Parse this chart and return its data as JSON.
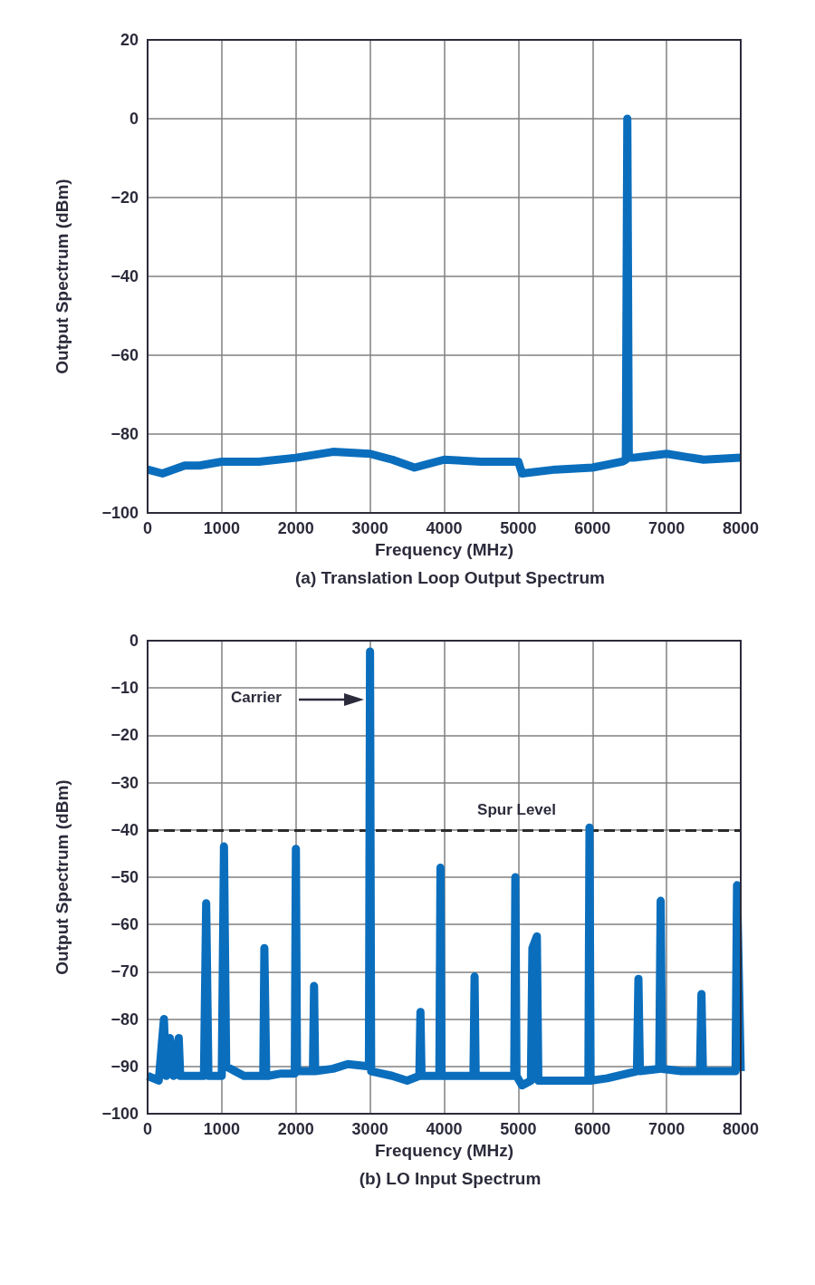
{
  "chart_data": [
    {
      "type": "line",
      "title": "(a) Translation Loop Output Spectrum",
      "xlabel": "Frequency (MHz)",
      "ylabel": "Output Spectrum (dBm)",
      "series": [
        {
          "color": "#0a6ebd",
          "x": [
            0,
            200,
            500,
            700,
            1000,
            1500,
            2000,
            2500,
            3000,
            3300,
            3600,
            4000,
            4500,
            5000,
            5050,
            5500,
            6000,
            6400,
            6450,
            6470,
            6490,
            6550,
            7000,
            7500,
            8000
          ],
          "values": [
            -89,
            -90,
            -88,
            -88,
            -87,
            -87,
            -86,
            -84.5,
            -85,
            -86.5,
            -88.5,
            -86.5,
            -87,
            -87,
            -90,
            -89,
            -88.5,
            -87,
            -86.5,
            0,
            -86,
            -86,
            -85,
            -86.5,
            -86
          ]
        }
      ],
      "xlim": [
        0,
        8000
      ],
      "xticks": [
        0,
        1000,
        2000,
        3000,
        4000,
        5000,
        6000,
        7000,
        8000
      ],
      "ylim": [
        -100,
        20
      ],
      "yticks": [
        -100,
        -80,
        -60,
        -40,
        -20,
        0,
        20
      ],
      "grid": true,
      "marker": "none",
      "line_style": "solid"
    },
    {
      "type": "line",
      "title": "(b) LO Input Spectrum",
      "xlabel": "Frequency (MHz)",
      "ylabel": "Output Spectrum (dBm)",
      "series": [
        {
          "color": "#0a6ebd",
          "x": [
            0,
            150,
            220,
            250,
            300,
            350,
            420,
            440,
            470,
            600,
            760,
            790,
            820,
            1000,
            1030,
            1060,
            1300,
            1560,
            1575,
            1600,
            1625,
            1800,
            1985,
            2000,
            2015,
            2230,
            2245,
            2260,
            2500,
            2700,
            2985,
            3000,
            3015,
            3300,
            3500,
            3665,
            3680,
            3695,
            3935,
            3950,
            3965,
            4200,
            4395,
            4410,
            4425,
            4700,
            4945,
            4960,
            4975,
            5050,
            5170,
            5190,
            5250,
            5270,
            5500,
            5945,
            5960,
            5975,
            6200,
            6600,
            6620,
            6640,
            6900,
            6920,
            6940,
            7200,
            7450,
            7470,
            7490,
            7700,
            7930,
            7950,
            8000
          ],
          "values": [
            -92,
            -93,
            -80,
            -92,
            -84,
            -92,
            -84,
            -92,
            -92,
            -92,
            -92,
            -55.5,
            -92,
            -92,
            -43.5,
            -90,
            -92,
            -92,
            -65,
            -92,
            -92,
            -91.5,
            -91.5,
            -44,
            -91,
            -91,
            -73,
            -91,
            -90.5,
            -89.5,
            -90,
            -2.3,
            -91,
            -92,
            -93,
            -92,
            -78.5,
            -92,
            -92,
            -48,
            -92,
            -92,
            -92,
            -71,
            -92,
            -92,
            -92,
            -50,
            -92,
            -94,
            -93,
            -65,
            -62.5,
            -93,
            -93,
            -93,
            -39.5,
            -93,
            -92.5,
            -91,
            -71.5,
            -91,
            -90.5,
            -55,
            -90.5,
            -91,
            -91,
            -74.7,
            -91,
            -91,
            -91,
            -51.7,
            -91
          ]
        }
      ],
      "xlim": [
        0,
        8000
      ],
      "xticks": [
        0,
        1000,
        2000,
        3000,
        4000,
        5000,
        6000,
        7000,
        8000
      ],
      "ylim": [
        -100,
        0
      ],
      "yticks": [
        -100,
        -90,
        -80,
        -70,
        -60,
        -50,
        -40,
        -30,
        -20,
        -10,
        0
      ],
      "grid": true,
      "marker": "none",
      "line_style": "solid",
      "ref_lines": [
        {
          "axis": "y",
          "value": -40,
          "label": "Spur Level",
          "color": "#2b2b2b",
          "line_style": "dashed"
        }
      ],
      "annotations": [
        "Carrier"
      ]
    }
  ]
}
